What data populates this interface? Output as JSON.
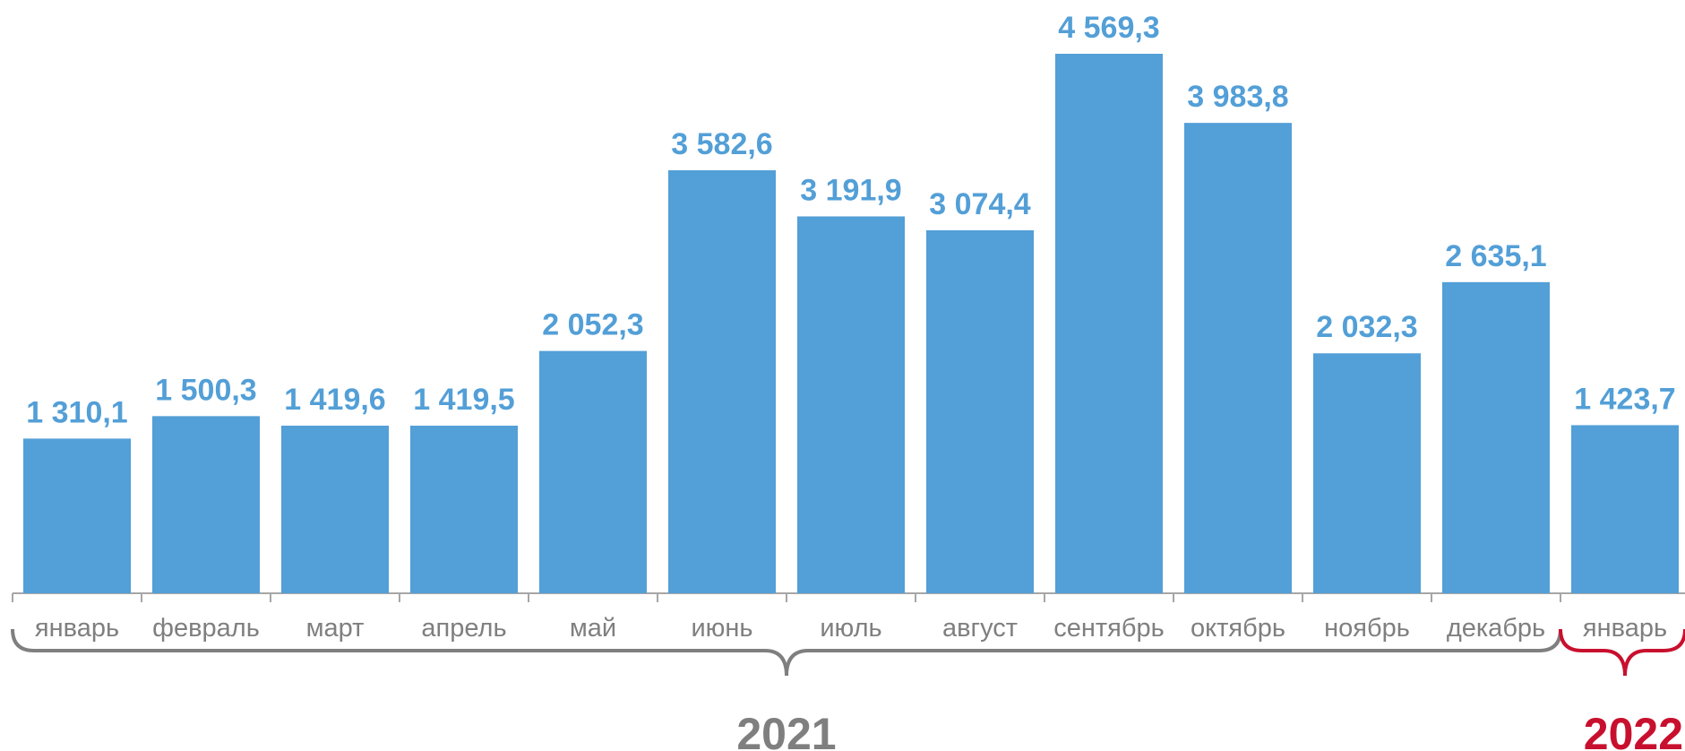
{
  "chart_data": {
    "type": "bar",
    "categories": [
      "январь",
      "февраль",
      "март",
      "апрель",
      "май",
      "июнь",
      "июль",
      "август",
      "сентябрь",
      "октябрь",
      "ноябрь",
      "декабрь",
      "январь"
    ],
    "values": [
      1310.1,
      1500.3,
      1419.6,
      1419.5,
      2052.3,
      3582.6,
      3191.9,
      3074.4,
      4569.3,
      3983.8,
      2032.3,
      2635.1,
      1423.7
    ],
    "value_labels": [
      "1 310,1",
      "1 500,3",
      "1 419,6",
      "1 419,5",
      "2 052,3",
      "3 582,6",
      "3 191,9",
      "3 074,4",
      "4 569,3",
      "3 983,8",
      "2 032,3",
      "2 635,1",
      "1 423,7"
    ],
    "groups": [
      {
        "label": "2021",
        "from": 0,
        "to": 11,
        "color": "#7f7f7f"
      },
      {
        "label": "2022",
        "from": 12,
        "to": 12,
        "color": "#c8102e"
      }
    ],
    "title": "",
    "xlabel": "",
    "ylabel": "",
    "ylim": [
      0,
      4569.3
    ],
    "grid": false,
    "legend": "none"
  },
  "colors": {
    "bar": "#539fd7",
    "value_label": "#539fd7",
    "category_label": "#7f7f7f",
    "axis": "#a6a6a6"
  }
}
